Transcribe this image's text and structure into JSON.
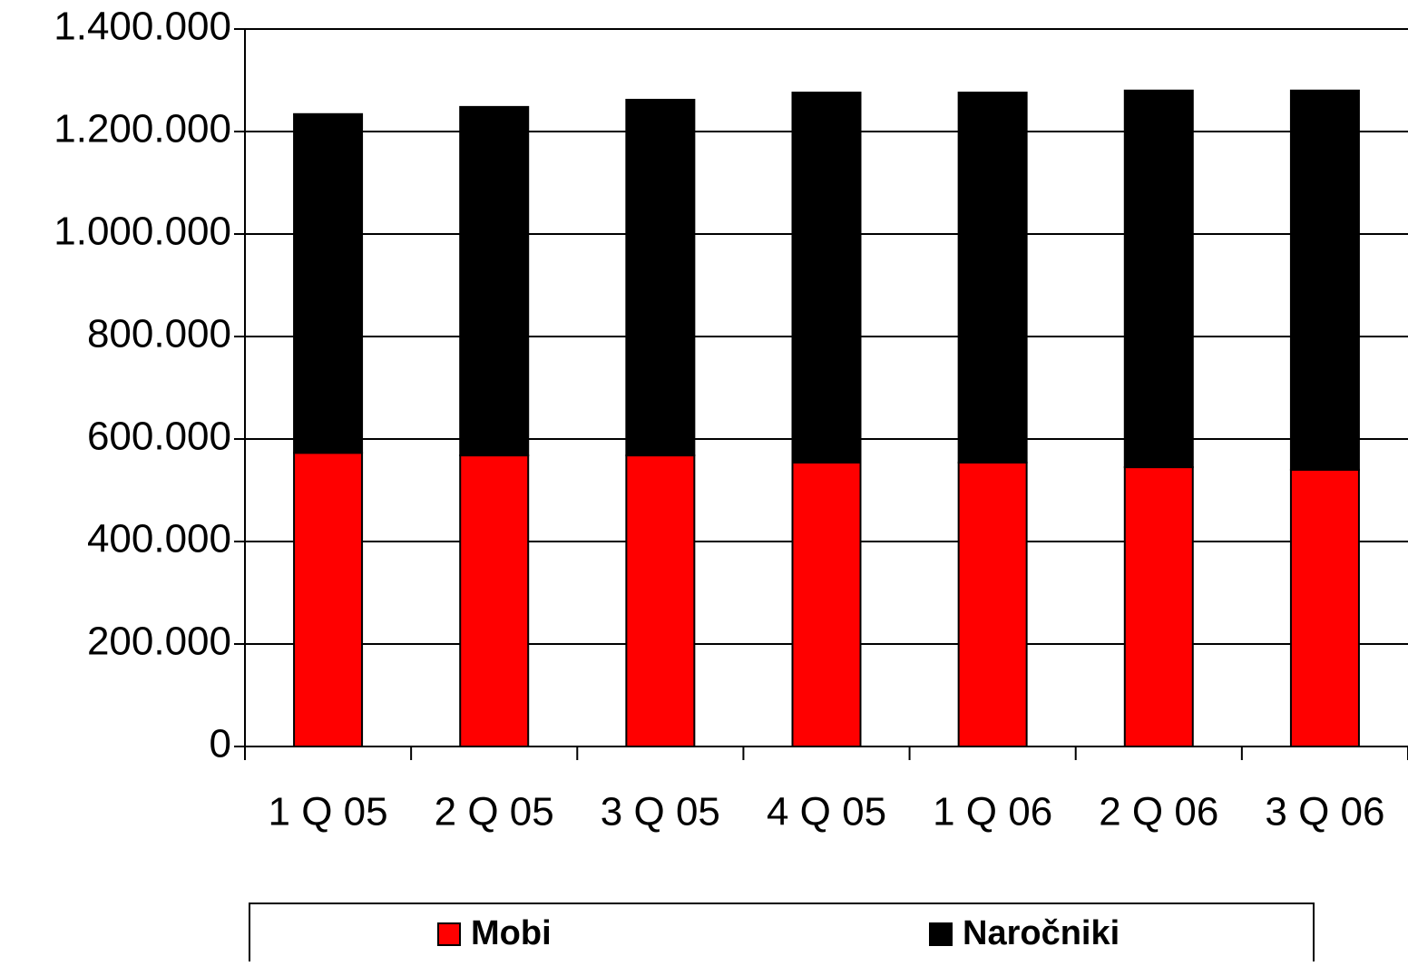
{
  "chart_data": {
    "type": "stacked_bar",
    "categories": [
      "1 Q 05",
      "2 Q 05",
      "3 Q 05",
      "4 Q 05",
      "1 Q 06",
      "2 Q 06",
      "3 Q 06"
    ],
    "series": [
      {
        "name": "Mobi",
        "color": "#ff0000",
        "values": [
          573000,
          568000,
          568000,
          554000,
          554000,
          545000,
          540000
        ]
      },
      {
        "name": "Naročniki",
        "color": "#000000",
        "values": [
          661000,
          680000,
          694000,
          722000,
          722000,
          735000,
          740000
        ]
      }
    ],
    "ylim": [
      0,
      1400000
    ],
    "yticks": [
      0,
      {
        "value": 200000,
        "label": "200.000"
      },
      {
        "value": 400000,
        "label": "400.000"
      },
      {
        "value": 600000,
        "label": "600.000"
      },
      {
        "value": 800000,
        "label": "800.000"
      },
      {
        "value": 1000000,
        "label": "1.000.000"
      },
      {
        "value": 1200000,
        "label": "1.200.000"
      },
      {
        "value": 1400000,
        "label": "1.400.000"
      }
    ],
    "grid": true,
    "legend": "bottom"
  }
}
